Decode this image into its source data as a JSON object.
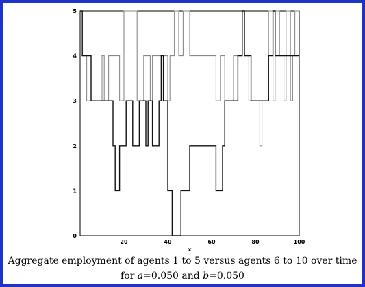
{
  "chart_data": {
    "type": "line",
    "step": true,
    "xlabel": "x",
    "ylabel": "",
    "xlim": [
      0,
      100
    ],
    "ylim": [
      0,
      5
    ],
    "xticks": [
      "20",
      "40",
      "60",
      "80",
      "100"
    ],
    "yticks": [
      "0",
      "1",
      "2",
      "3",
      "4",
      "5"
    ],
    "grid": false,
    "legend": "none",
    "series": [
      {
        "color": "#111111",
        "points": [
          [
            0,
            5
          ],
          [
            1,
            4
          ],
          [
            5,
            3
          ],
          [
            15,
            2
          ],
          [
            16,
            1
          ],
          [
            18,
            2
          ],
          [
            21,
            3
          ],
          [
            24,
            2
          ],
          [
            27,
            3
          ],
          [
            30,
            2
          ],
          [
            31,
            3
          ],
          [
            33,
            2
          ],
          [
            36,
            3
          ],
          [
            37,
            4
          ],
          [
            38,
            3
          ],
          [
            40,
            1
          ],
          [
            42,
            0
          ],
          [
            46,
            1
          ],
          [
            48,
            1
          ],
          [
            50,
            2
          ],
          [
            62,
            1
          ],
          [
            64,
            1
          ],
          [
            65,
            2
          ],
          [
            66,
            3
          ],
          [
            72,
            4
          ],
          [
            74,
            5
          ],
          [
            75,
            4
          ],
          [
            78,
            3
          ],
          [
            86,
            4
          ],
          [
            88,
            5
          ],
          [
            89,
            4
          ],
          [
            91,
            4
          ],
          [
            93,
            4
          ],
          [
            95,
            4
          ],
          [
            97,
            4
          ],
          [
            100,
            4
          ]
        ]
      },
      {
        "color": "#8a8a8a",
        "points": [
          [
            0,
            4
          ],
          [
            1,
            4
          ],
          [
            3,
            3
          ],
          [
            10,
            4
          ],
          [
            11,
            3
          ],
          [
            13,
            4
          ],
          [
            15,
            4
          ],
          [
            18,
            3
          ],
          [
            20,
            5
          ],
          [
            26,
            3
          ],
          [
            29,
            4
          ],
          [
            32,
            3
          ],
          [
            33,
            4
          ],
          [
            37,
            3
          ],
          [
            38,
            4
          ],
          [
            40,
            3
          ],
          [
            41,
            4
          ],
          [
            43,
            5
          ],
          [
            45,
            4
          ],
          [
            47,
            5
          ],
          [
            50,
            4
          ],
          [
            60,
            4
          ],
          [
            62,
            3
          ],
          [
            64,
            4
          ],
          [
            66,
            3
          ],
          [
            70,
            4
          ],
          [
            74,
            5
          ],
          [
            75,
            4
          ],
          [
            77,
            3
          ],
          [
            82,
            2
          ],
          [
            83,
            3
          ],
          [
            86,
            5
          ],
          [
            88,
            3
          ],
          [
            89,
            5
          ],
          [
            91,
            4
          ],
          [
            93,
            3
          ],
          [
            94,
            5
          ],
          [
            96,
            3
          ],
          [
            97,
            4
          ],
          [
            98,
            5
          ],
          [
            100,
            5
          ]
        ]
      }
    ]
  },
  "caption": {
    "line1": "Aggregate employment of agents 1 to 5 versus agents 6 to 10 over time",
    "line2": "for a=0.050 and b=0.050"
  }
}
